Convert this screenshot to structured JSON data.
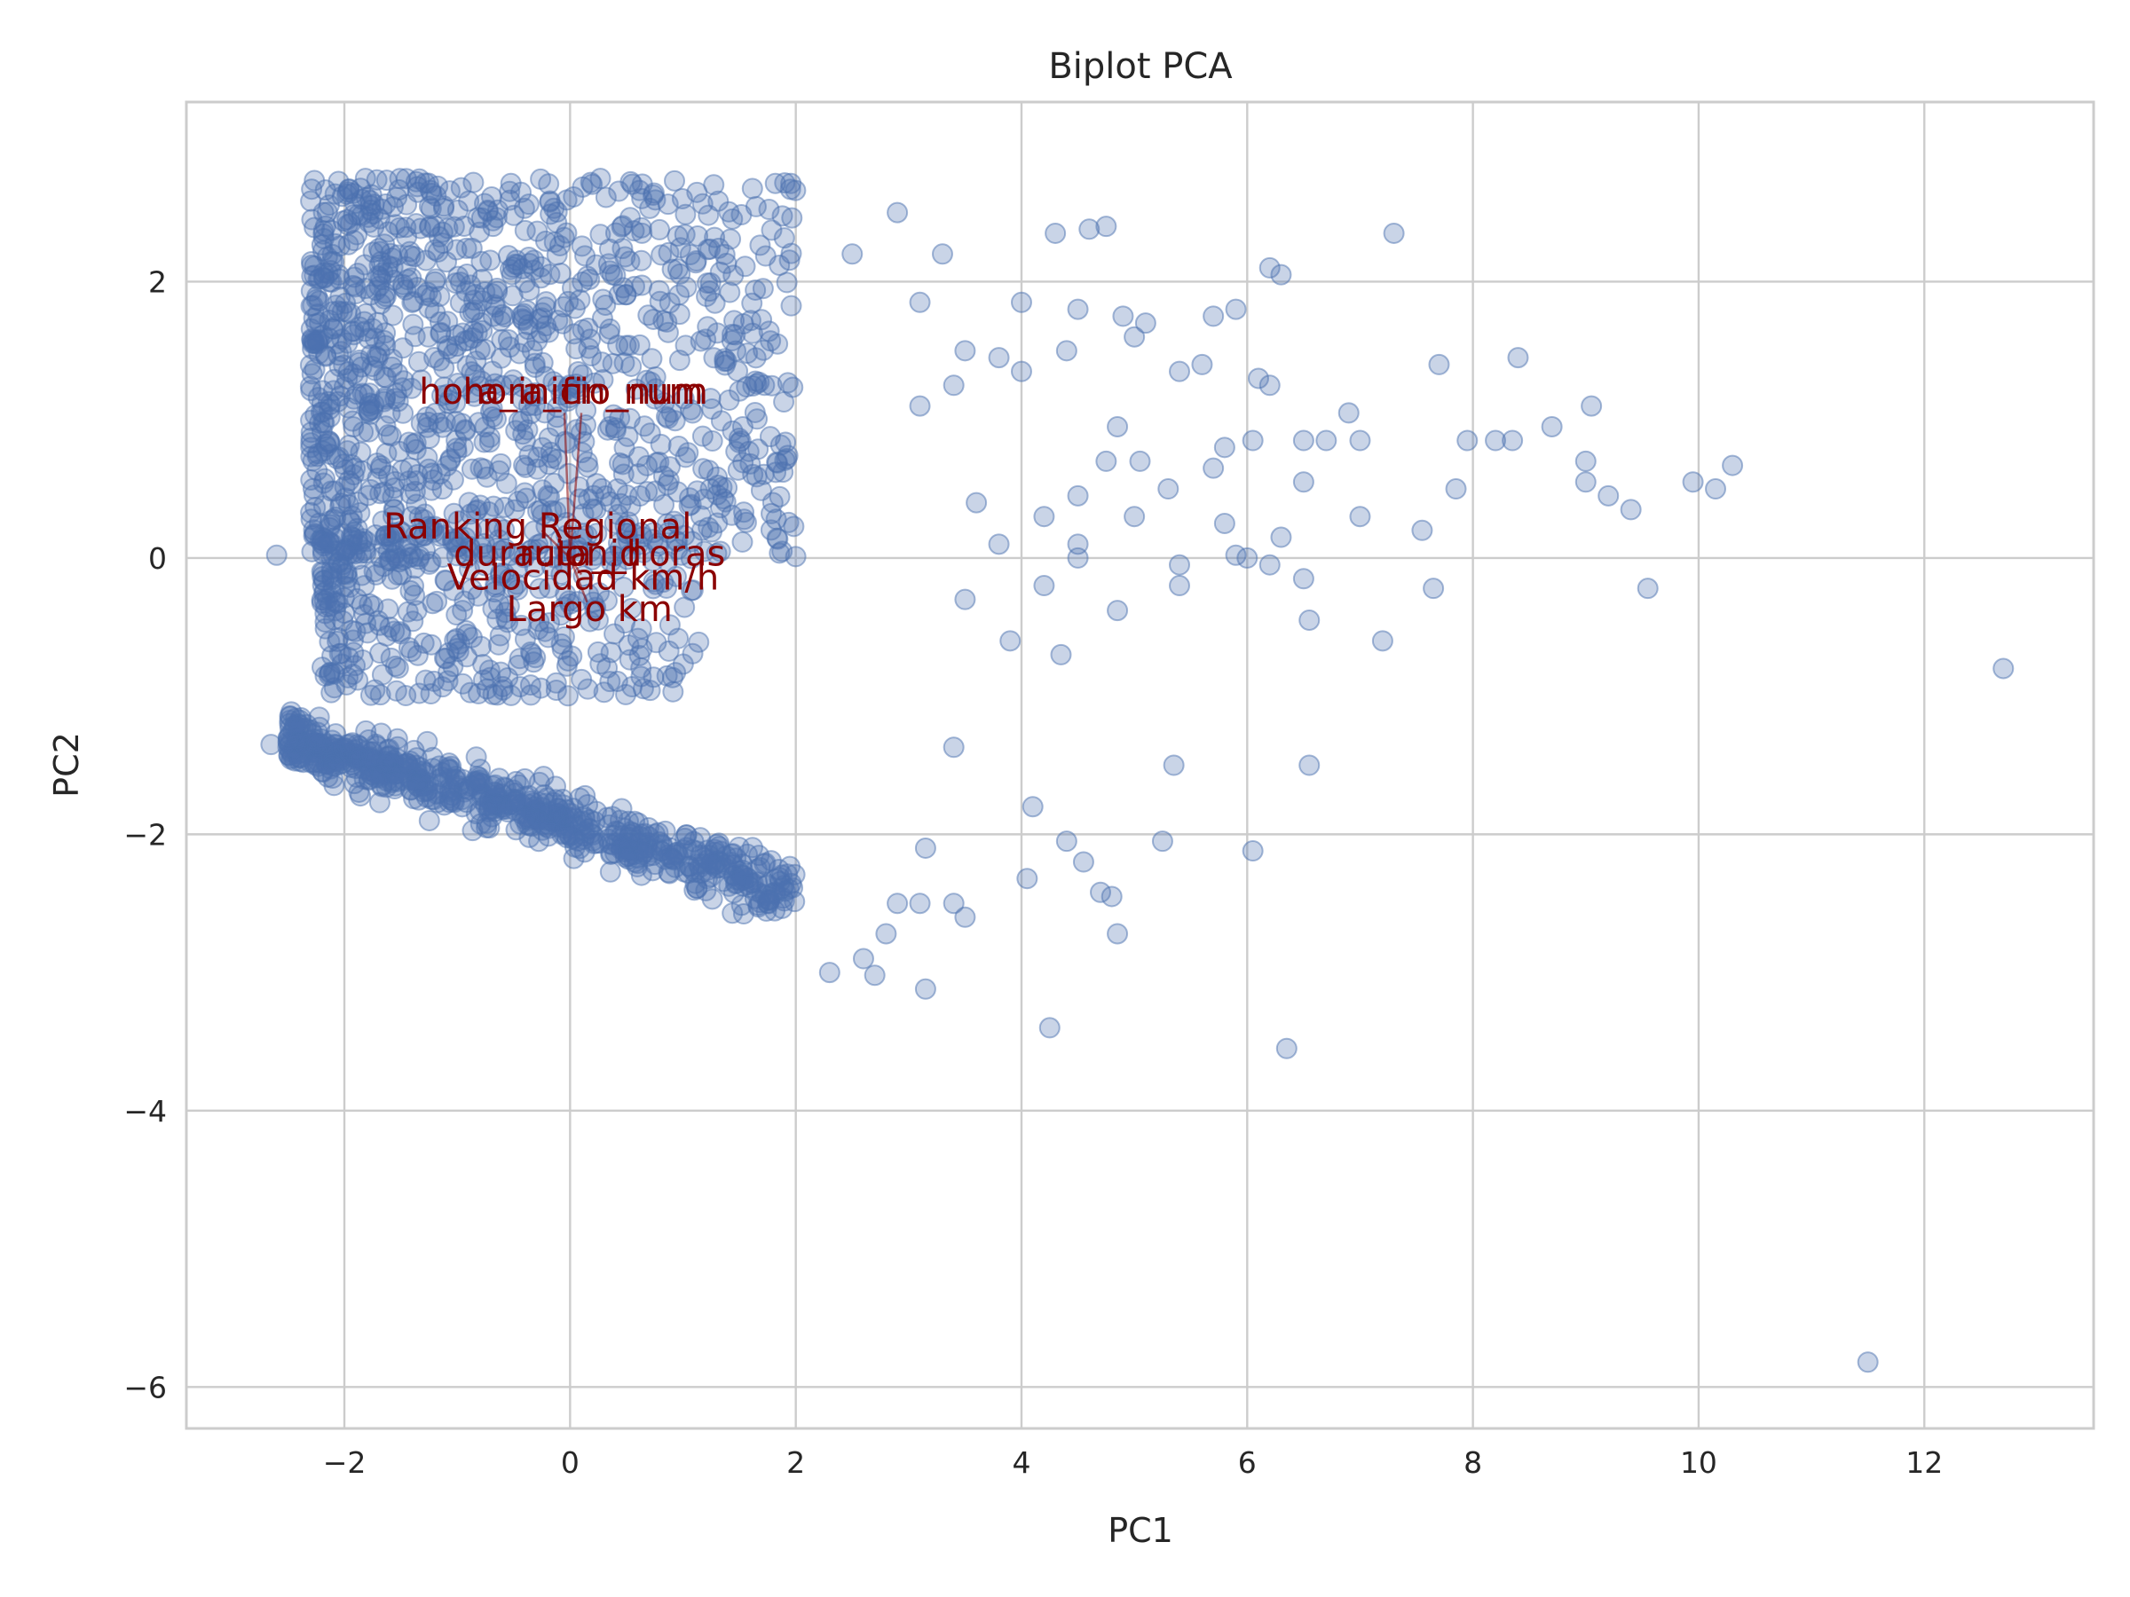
{
  "chart_data": {
    "type": "scatter",
    "title": "Biplot PCA",
    "xlabel": "PC1",
    "ylabel": "PC2",
    "xlim": [
      -3.4,
      13.5
    ],
    "ylim": [
      -6.3,
      3.3
    ],
    "xticks": [
      -2,
      0,
      2,
      4,
      6,
      8,
      10,
      12
    ],
    "yticks": [
      -6,
      -4,
      -2,
      0,
      2
    ],
    "xtick_labels": [
      "−2",
      "0",
      "2",
      "4",
      "6",
      "8",
      "10",
      "12"
    ],
    "ytick_labels": [
      "−6",
      "−4",
      "−2",
      "0",
      "2"
    ],
    "grid": true,
    "point_color": "#4c72b0",
    "loading_color": "#8b0000",
    "clusters": [
      {
        "x_range": [
          -2.3,
          2.0
        ],
        "y_range": [
          0.0,
          2.75
        ],
        "count": 1100
      },
      {
        "x_range": [
          -2.2,
          1.2
        ],
        "y_range": [
          -1.0,
          0.2
        ],
        "count": 350
      },
      {
        "x_range": [
          -2.5,
          2.0
        ],
        "y_range": [
          -2.2,
          -1.1
        ],
        "band_slope": -0.25,
        "count": 700
      }
    ],
    "points": [
      {
        "x": 2.5,
        "y": 2.2
      },
      {
        "x": 2.9,
        "y": 2.5
      },
      {
        "x": 3.3,
        "y": 2.2
      },
      {
        "x": 4.3,
        "y": 2.35
      },
      {
        "x": 4.6,
        "y": 2.38
      },
      {
        "x": 4.75,
        "y": 2.4
      },
      {
        "x": 7.3,
        "y": 2.35
      },
      {
        "x": 6.2,
        "y": 2.1
      },
      {
        "x": 6.3,
        "y": 2.05
      },
      {
        "x": 5.9,
        "y": 1.8
      },
      {
        "x": 3.1,
        "y": 1.85
      },
      {
        "x": 4.0,
        "y": 1.85
      },
      {
        "x": 4.5,
        "y": 1.8
      },
      {
        "x": 4.9,
        "y": 1.75
      },
      {
        "x": 5.1,
        "y": 1.7
      },
      {
        "x": 5.7,
        "y": 1.75
      },
      {
        "x": 5.0,
        "y": 1.6
      },
      {
        "x": 4.4,
        "y": 1.5
      },
      {
        "x": 3.5,
        "y": 1.5
      },
      {
        "x": 3.8,
        "y": 1.45
      },
      {
        "x": 4.0,
        "y": 1.35
      },
      {
        "x": 3.4,
        "y": 1.25
      },
      {
        "x": 3.1,
        "y": 1.1
      },
      {
        "x": 5.6,
        "y": 1.4
      },
      {
        "x": 5.4,
        "y": 1.35
      },
      {
        "x": 6.1,
        "y": 1.3
      },
      {
        "x": 6.2,
        "y": 1.25
      },
      {
        "x": 7.7,
        "y": 1.4
      },
      {
        "x": 8.4,
        "y": 1.45
      },
      {
        "x": 9.05,
        "y": 1.1
      },
      {
        "x": 6.9,
        "y": 1.05
      },
      {
        "x": 7.0,
        "y": 0.85
      },
      {
        "x": 7.95,
        "y": 0.85
      },
      {
        "x": 8.2,
        "y": 0.85
      },
      {
        "x": 8.35,
        "y": 0.85
      },
      {
        "x": 8.7,
        "y": 0.95
      },
      {
        "x": 5.8,
        "y": 0.8
      },
      {
        "x": 6.05,
        "y": 0.85
      },
      {
        "x": 6.5,
        "y": 0.85
      },
      {
        "x": 6.7,
        "y": 0.85
      },
      {
        "x": 5.7,
        "y": 0.65
      },
      {
        "x": 4.85,
        "y": 0.95
      },
      {
        "x": 5.05,
        "y": 0.7
      },
      {
        "x": 4.75,
        "y": 0.7
      },
      {
        "x": 4.5,
        "y": 0.45
      },
      {
        "x": 5.3,
        "y": 0.5
      },
      {
        "x": 6.5,
        "y": 0.55
      },
      {
        "x": 9.0,
        "y": 0.7
      },
      {
        "x": 9.0,
        "y": 0.55
      },
      {
        "x": 9.2,
        "y": 0.45
      },
      {
        "x": 9.4,
        "y": 0.35
      },
      {
        "x": 9.95,
        "y": 0.55
      },
      {
        "x": 10.15,
        "y": 0.5
      },
      {
        "x": 10.3,
        "y": 0.67
      },
      {
        "x": 7.85,
        "y": 0.5
      },
      {
        "x": 7.0,
        "y": 0.3
      },
      {
        "x": 7.55,
        "y": 0.2
      },
      {
        "x": 5.0,
        "y": 0.3
      },
      {
        "x": 5.8,
        "y": 0.25
      },
      {
        "x": 4.2,
        "y": 0.3
      },
      {
        "x": 3.8,
        "y": 0.1
      },
      {
        "x": 4.5,
        "y": 0.1
      },
      {
        "x": 3.6,
        "y": 0.4
      },
      {
        "x": 6.3,
        "y": 0.15
      },
      {
        "x": 5.9,
        "y": 0.02
      },
      {
        "x": 6.0,
        "y": 0.0
      },
      {
        "x": 6.2,
        "y": -0.05
      },
      {
        "x": 6.5,
        "y": -0.15
      },
      {
        "x": 5.4,
        "y": -0.05
      },
      {
        "x": 5.4,
        "y": -0.2
      },
      {
        "x": 4.5,
        "y": 0.0
      },
      {
        "x": 4.2,
        "y": -0.2
      },
      {
        "x": 7.65,
        "y": -0.22
      },
      {
        "x": 9.55,
        "y": -0.22
      },
      {
        "x": 6.55,
        "y": -0.45
      },
      {
        "x": 4.85,
        "y": -0.38
      },
      {
        "x": 3.5,
        "y": -0.3
      },
      {
        "x": 4.35,
        "y": -0.7
      },
      {
        "x": 3.9,
        "y": -0.6
      },
      {
        "x": 7.2,
        "y": -0.6
      },
      {
        "x": 12.7,
        "y": -0.8
      },
      {
        "x": 3.4,
        "y": -1.37
      },
      {
        "x": 5.35,
        "y": -1.5
      },
      {
        "x": 6.55,
        "y": -1.5
      },
      {
        "x": 4.1,
        "y": -1.8
      },
      {
        "x": 3.15,
        "y": -2.1
      },
      {
        "x": 4.4,
        "y": -2.05
      },
      {
        "x": 5.25,
        "y": -2.05
      },
      {
        "x": 4.55,
        "y": -2.2
      },
      {
        "x": 6.05,
        "y": -2.12
      },
      {
        "x": 4.05,
        "y": -2.32
      },
      {
        "x": 4.7,
        "y": -2.42
      },
      {
        "x": 4.8,
        "y": -2.45
      },
      {
        "x": 4.85,
        "y": -2.72
      },
      {
        "x": 3.4,
        "y": -2.5
      },
      {
        "x": 3.5,
        "y": -2.6
      },
      {
        "x": 3.1,
        "y": -2.5
      },
      {
        "x": 2.9,
        "y": -2.5
      },
      {
        "x": 2.6,
        "y": -2.9
      },
      {
        "x": 2.8,
        "y": -2.72
      },
      {
        "x": 2.3,
        "y": -3.0
      },
      {
        "x": 2.7,
        "y": -3.02
      },
      {
        "x": 3.15,
        "y": -3.12
      },
      {
        "x": 4.25,
        "y": -3.4
      },
      {
        "x": 6.35,
        "y": -3.55
      },
      {
        "x": 11.5,
        "y": -5.82
      },
      {
        "x": -2.6,
        "y": 0.02
      },
      {
        "x": -2.65,
        "y": -1.35
      }
    ],
    "loadings": [
      {
        "label": "hora_inicio_num",
        "x": -0.05,
        "y": 1.05
      },
      {
        "label": "hora_fin_num",
        "x": 0.1,
        "y": 1.05
      },
      {
        "label": "Ranking Regional",
        "x": -0.25,
        "y": 0.2
      },
      {
        "label": "duracion_horas",
        "x": 0.15,
        "y": 0.03
      },
      {
        "label": "Velocidad km/h",
        "x": 0.1,
        "y": -0.12
      },
      {
        "label": "Largo km",
        "x": 0.15,
        "y": -0.32
      },
      {
        "label": "ruta_id",
        "x": 0.08,
        "y": 0.03
      }
    ]
  }
}
